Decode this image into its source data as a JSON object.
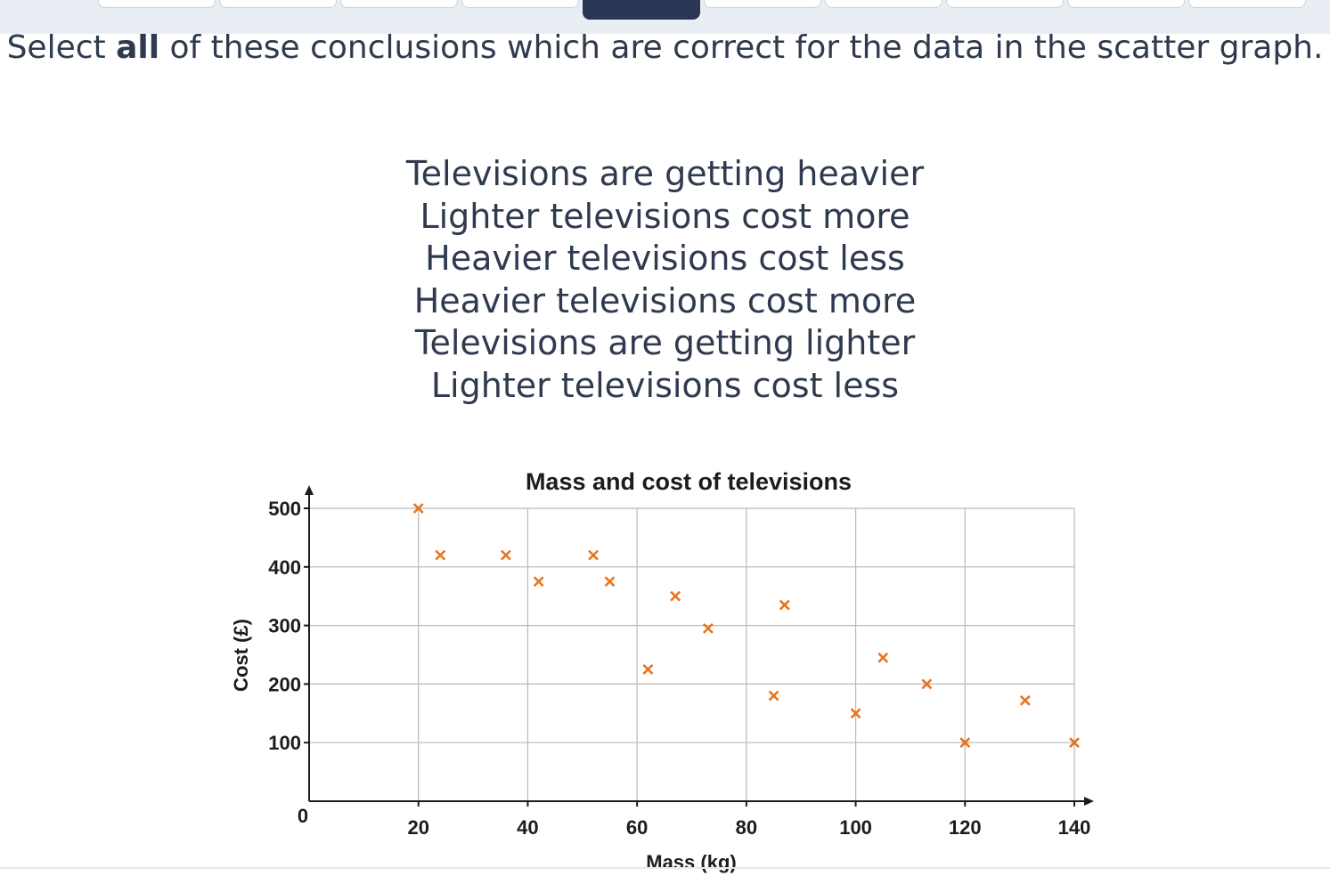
{
  "question": {
    "prefix": "Select ",
    "bold": "all",
    "suffix": " of these conclusions which are correct for the data in the scatter graph."
  },
  "options": [
    "Televisions are getting heavier",
    "Lighter televisions cost more",
    "Heavier televisions cost less",
    "Heavier televisions cost more",
    "Televisions are getting lighter",
    "Lighter televisions cost less"
  ],
  "progress": {
    "segments": 10,
    "active_index": 4
  },
  "chart_data": {
    "type": "scatter",
    "title": "Mass and cost of televisions",
    "xlabel": "Mass (kg)",
    "ylabel": "Cost (£)",
    "xlim": [
      0,
      140
    ],
    "ylim": [
      0,
      500
    ],
    "xticks": [
      0,
      20,
      40,
      60,
      80,
      100,
      120,
      140
    ],
    "yticks": [
      100,
      200,
      300,
      400,
      500
    ],
    "grid": true,
    "marker": "x",
    "marker_color": "#e8741e",
    "points": [
      [
        20,
        500
      ],
      [
        24,
        420
      ],
      [
        36,
        420
      ],
      [
        52,
        420
      ],
      [
        42,
        375
      ],
      [
        55,
        375
      ],
      [
        67,
        350
      ],
      [
        87,
        335
      ],
      [
        73,
        295
      ],
      [
        62,
        225
      ],
      [
        105,
        245
      ],
      [
        85,
        180
      ],
      [
        100,
        150
      ],
      [
        113,
        200
      ],
      [
        131,
        172
      ],
      [
        120,
        100
      ],
      [
        140,
        100
      ]
    ]
  }
}
